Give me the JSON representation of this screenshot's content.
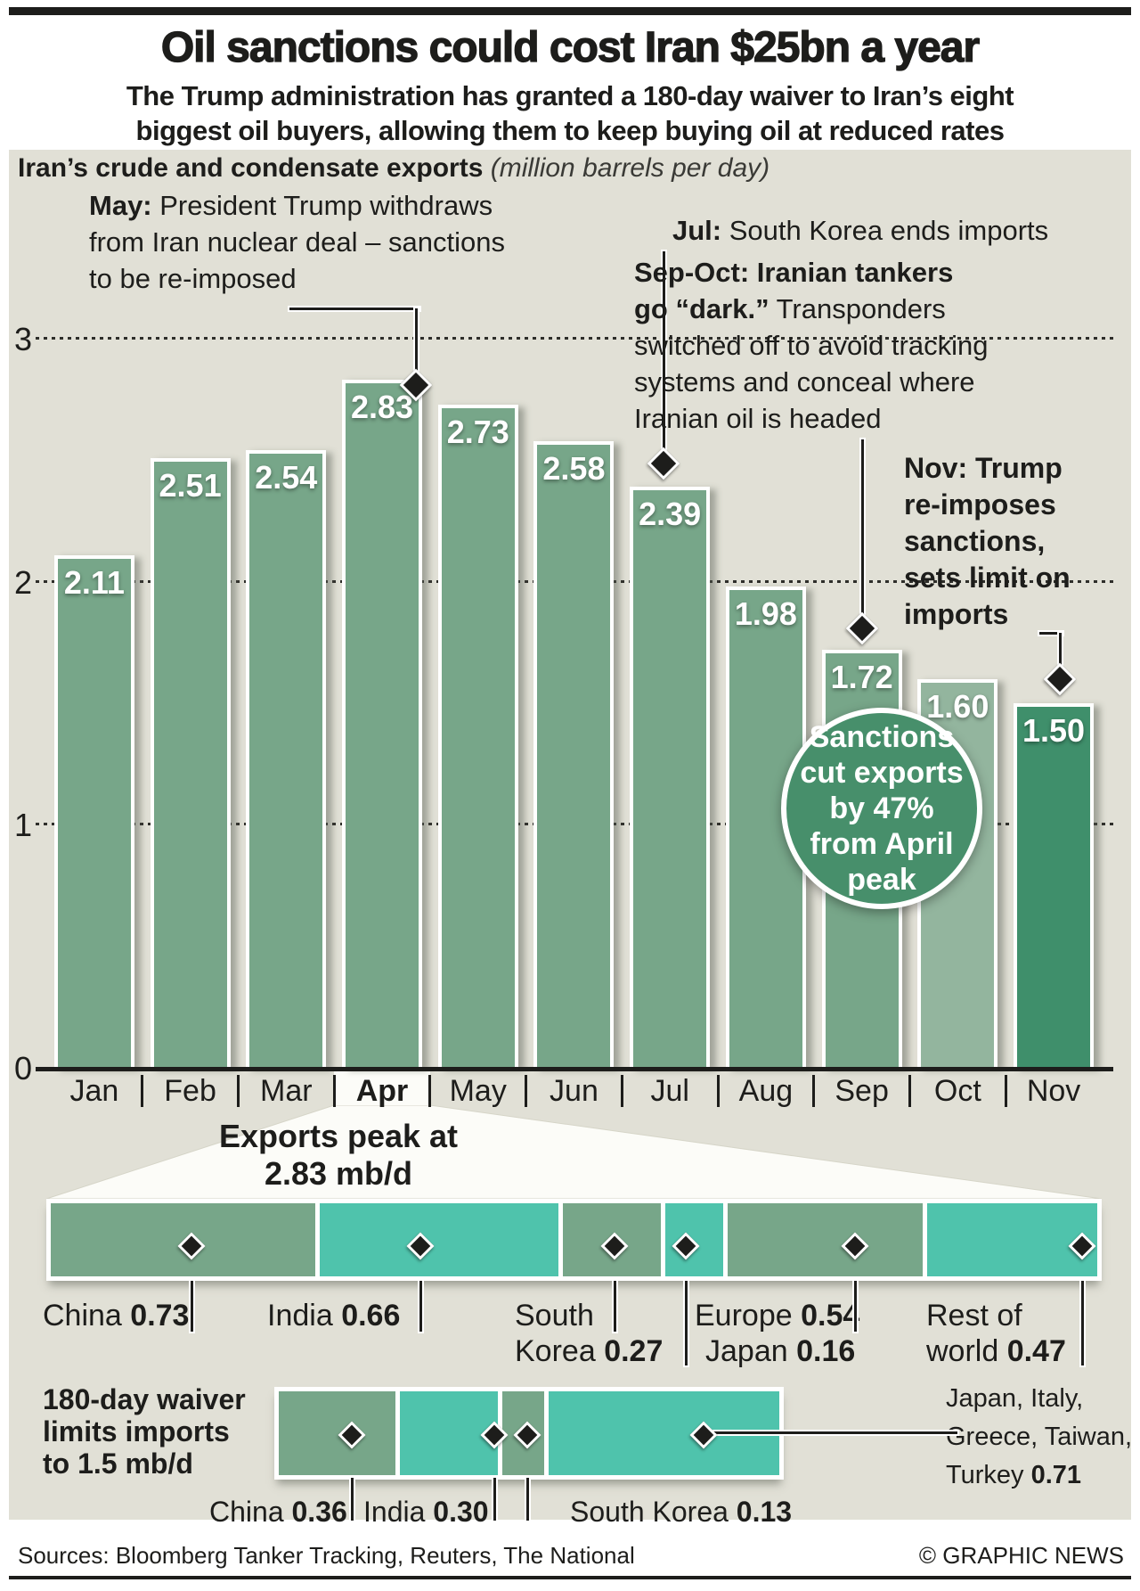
{
  "header": {
    "title": "Oil sanctions could cost Iran $25bn a year",
    "subtitle_lines": [
      "The Trump administration has granted a 180-day waiver to Iran’s eight",
      "biggest oil buyers, allowing them to keep buying oil at reduced rates"
    ]
  },
  "colors": {
    "panel": "#E1E0D6",
    "bar": "#77A689",
    "teal": "#4FC3AC",
    "circle": "#478F6B",
    "ink": "#1d1d1b",
    "bar_overrides": {
      "Oct": "#93B59E",
      "Nov": "#3F8F6B"
    }
  },
  "chart_data": [
    {
      "name": "exports",
      "type": "bar",
      "title": "Iran’s crude and condensate exports",
      "unit_label": "(million barrels per day)",
      "categories": [
        "Jan",
        "Feb",
        "Mar",
        "Apr",
        "May",
        "Jun",
        "Jul",
        "Aug",
        "Sep",
        "Oct",
        "Nov"
      ],
      "values": [
        2.11,
        2.51,
        2.54,
        2.83,
        2.73,
        2.58,
        2.39,
        1.98,
        1.72,
        1.6,
        1.5
      ],
      "value_labels": [
        "2.11",
        "2.51",
        "2.54",
        "2.83",
        "2.73",
        "2.58",
        "2.39",
        "1.98",
        "1.72",
        "1.60",
        "1.50"
      ],
      "ylim": [
        0,
        3
      ],
      "yticks": [
        3,
        2,
        1,
        0
      ],
      "grid": "dotted",
      "highlight_month": "Apr",
      "annotations": [
        {
          "id": "may",
          "lines": [
            {
              "b": "May:",
              "r": " President Trump withdraws"
            },
            {
              "r": "from Iran nuclear deal – sanctions"
            },
            {
              "r": "to be re-imposed"
            }
          ]
        },
        {
          "id": "jul",
          "lines": [
            {
              "b": "Jul:",
              "r": " South Korea ends imports"
            }
          ]
        },
        {
          "id": "sep-oct",
          "lines": [
            {
              "b": "Sep-Oct: Iranian tankers"
            },
            {
              "b": "go “dark.”",
              "r": " Transponders"
            },
            {
              "r": "switched off to avoid tracking"
            },
            {
              "r": "systems and conceal where"
            },
            {
              "r": "Iranian oil is headed"
            }
          ]
        },
        {
          "id": "nov",
          "lines": [
            {
              "b": "Nov: Trump"
            },
            {
              "b": "re-imposes"
            },
            {
              "b": "sanctions,"
            },
            {
              "b": "sets limit on"
            },
            {
              "b": "imports"
            }
          ]
        }
      ],
      "callout_circle_lines": [
        "Sanctions",
        "cut exports",
        "by 47%",
        "from April",
        "peak"
      ]
    },
    {
      "name": "april-breakdown",
      "type": "stacked-bar",
      "intro_lines": [
        "Exports peak at",
        "2.83 mb/d"
      ],
      "total": 2.83,
      "segments": [
        {
          "label": "China",
          "value": "0.73",
          "v": 0.73
        },
        {
          "label": "India",
          "value": "0.66",
          "v": 0.66
        },
        {
          "label": "South Korea",
          "value": "0.27",
          "v": 0.27
        },
        {
          "label": "Japan",
          "value": "0.16",
          "v": 0.16
        },
        {
          "label": "Europe",
          "value": "0.54",
          "v": 0.54
        },
        {
          "label": "Rest of world",
          "value": "0.47",
          "v": 0.47
        }
      ]
    },
    {
      "name": "waiver-breakdown",
      "type": "stacked-bar",
      "intro_lines": [
        "180-day waiver",
        "limits imports",
        "to 1.5 mb/d"
      ],
      "total": 1.5,
      "segments": [
        {
          "label": "China",
          "value": "0.36",
          "v": 0.36
        },
        {
          "label": "India",
          "value": "0.30",
          "v": 0.3
        },
        {
          "label": "South Korea",
          "value": "0.13",
          "v": 0.13
        },
        {
          "label": "Japan, Italy, Greece, Taiwan, Turkey",
          "value": "0.71",
          "v": 0.71,
          "label_lines": [
            "Japan, Italy,",
            "Greece, Taiwan,",
            "Turkey"
          ]
        }
      ]
    }
  ],
  "footer": {
    "sources": "Sources: Bloomberg Tanker Tracking, Reuters, The National",
    "credit": "© GRAPHIC NEWS"
  }
}
